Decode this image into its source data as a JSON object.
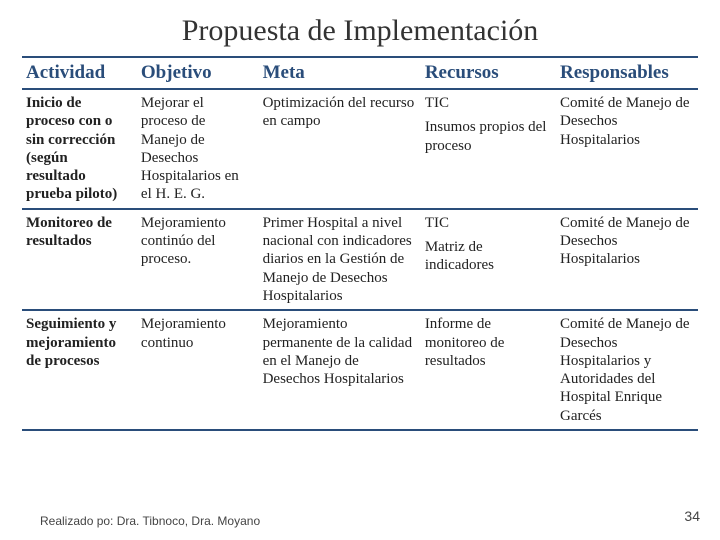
{
  "title": "Propuesta de Implementación",
  "columns": {
    "actividad": "Actividad",
    "objetivo": "Objetivo",
    "meta": "Meta",
    "recursos": "Recursos",
    "responsables": "Responsables"
  },
  "rows": [
    {
      "actividad": "Inicio de proceso con o sin corrección (según resultado prueba piloto)",
      "objetivo": "Mejorar el proceso de Manejo de Desechos Hospitalarios en el H. E. G.",
      "meta": "Optimización del recurso en campo",
      "recursos1": "TIC",
      "recursos2": "Insumos propios del proceso",
      "responsables": "Comité de Manejo de Desechos Hospitalarios"
    },
    {
      "actividad": "Monitoreo de resultados",
      "objetivo": "Mejoramiento continúo del proceso.",
      "meta": "Primer Hospital a nivel nacional con indicadores diarios en la Gestión de Manejo de Desechos Hospitalarios",
      "recursos1": "TIC",
      "recursos2": "Matriz de indicadores",
      "responsables": "Comité de Manejo de Desechos Hospitalarios"
    },
    {
      "actividad": "Seguimiento y mejoramiento de procesos",
      "objetivo": "Mejoramiento continuo",
      "meta": "Mejoramiento permanente de la calidad  en el Manejo de Desechos Hospitalarios",
      "recursos1": "Informe de monitoreo de resultados",
      "recursos2": "",
      "responsables": "Comité de Manejo de Desechos Hospitalarios y Autoridades del Hospital Enrique Garcés"
    }
  ],
  "footnote": "Realizado po: Dra. Tibnoco, Dra. Moyano",
  "pagenum": "34",
  "style": {
    "title_color": "#333333",
    "title_fontsize": 30,
    "header_color": "#2a4d7a",
    "border_color": "#2a4d7a",
    "body_text_color": "#222222",
    "body_fontsize": 15,
    "header_fontsize": 19,
    "background_color": "#ffffff",
    "font_family_title": "Georgia",
    "font_family_body": "Georgia"
  }
}
